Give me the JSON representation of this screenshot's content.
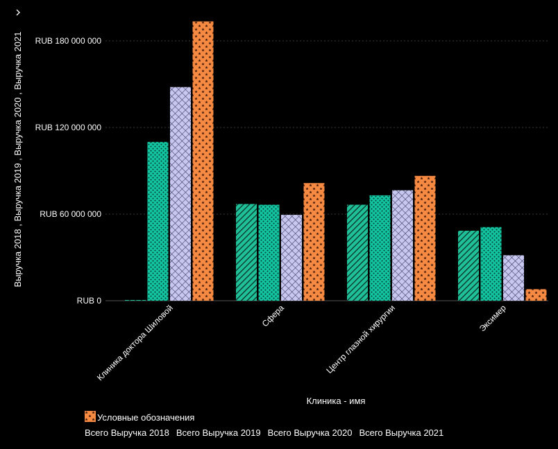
{
  "colors": {
    "background": "#000000",
    "text": "#ffffff",
    "grid": "#3a3a3a",
    "s2018": "#1fbf97",
    "s2019": "#13c4a0",
    "s2020": "#c7c7ef",
    "s2021": "#f78a43"
  },
  "expand_icon": "chevron-right-icon",
  "legend": {
    "toggle_icon": "checkmark-icon",
    "toggle_check": "✓",
    "title": "Условные обозначения",
    "items": [
      {
        "label": "Всего Выручка 2018",
        "pattern": "diagonal-stripes"
      },
      {
        "label": "Всего Выручка 2019",
        "pattern": "dots"
      },
      {
        "label": "Всего Выручка 2020",
        "pattern": "crosshatch"
      },
      {
        "label": "Всего Выручка 2021",
        "pattern": "stars"
      }
    ]
  },
  "chart_data": {
    "type": "bar",
    "title": "",
    "xlabel": "Клиника - имя",
    "ylabel": "Выручка 2018 , Выручка 2019 , Выручка 2020 , Выручка 2021",
    "categories": [
      "Клиника доктора Шиловой",
      "Сфера",
      "Центр глазной хирургии",
      "Эксимер"
    ],
    "series": [
      {
        "name": "Всего Выручка 2018",
        "values": [
          500000,
          67000000,
          66500000,
          48500000
        ]
      },
      {
        "name": "Всего Выручка 2019",
        "values": [
          110000000,
          66500000,
          73000000,
          51000000
        ]
      },
      {
        "name": "Всего Выручка 2020",
        "values": [
          148000000,
          59500000,
          76500000,
          31500000
        ]
      },
      {
        "name": "Всего Выручка 2021",
        "values": [
          193500000,
          81500000,
          86500000,
          8000000
        ]
      }
    ],
    "ylim": [
      0,
      195000000
    ],
    "yticks": [
      0,
      60000000,
      120000000,
      180000000
    ],
    "ytick_labels": [
      "RUB 0",
      "RUB 60 000 000",
      "RUB 120 000 000",
      "RUB 180 000 000"
    ],
    "grid": true,
    "legend_position": "bottom"
  }
}
